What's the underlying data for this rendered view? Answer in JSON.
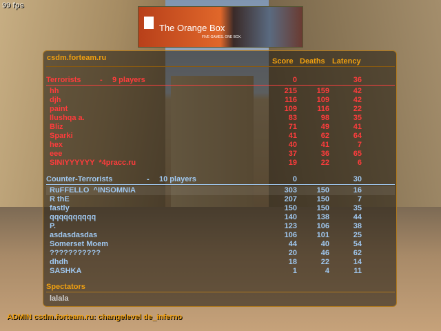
{
  "hud": {
    "fps": "99 fps",
    "admin_message": "ADMIN csdm.forteam.ru: changelevel de_inferno"
  },
  "banner": {
    "title": "The Orange Box",
    "subtitle": "FIVE GAMES. ONE BOX."
  },
  "scoreboard": {
    "server": "csdm.forteam.ru",
    "columns": [
      "Score",
      "Deaths",
      "Latency"
    ],
    "colors": {
      "accent": "#f0a010",
      "terrorists": "#ff3c3c",
      "ct": "#a0c8f0"
    },
    "teams": [
      {
        "name": "Terrorists",
        "sep": "-",
        "count": "9 players",
        "score": "0",
        "latency": "36",
        "players": [
          {
            "name": "hh",
            "score": "215",
            "deaths": "159",
            "latency": "42"
          },
          {
            "name": "djh",
            "score": "116",
            "deaths": "109",
            "latency": "42"
          },
          {
            "name": "paint",
            "score": "109",
            "deaths": "116",
            "latency": "22"
          },
          {
            "name": "Ilushqa a.",
            "score": "83",
            "deaths": "98",
            "latency": "35"
          },
          {
            "name": "Bliz",
            "score": "71",
            "deaths": "49",
            "latency": "41"
          },
          {
            "name": "Sparki",
            "score": "41",
            "deaths": "62",
            "latency": "64"
          },
          {
            "name": "hex",
            "score": "40",
            "deaths": "41",
            "latency": "7"
          },
          {
            "name": "eee",
            "score": "37",
            "deaths": "36",
            "latency": "65"
          },
          {
            "name": "SINIYYYYYY  *4pracc.ru",
            "score": "19",
            "deaths": "22",
            "latency": "6"
          }
        ]
      },
      {
        "name": "Counter-Terrorists",
        "sep": "-",
        "count": "10 players",
        "score": "0",
        "latency": "30",
        "players": [
          {
            "name": "RuFFELLO  ^INSOMNIA",
            "score": "303",
            "deaths": "150",
            "latency": "16"
          },
          {
            "name": "R thE",
            "score": "207",
            "deaths": "150",
            "latency": "7"
          },
          {
            "name": "fastly",
            "score": "150",
            "deaths": "150",
            "latency": "35"
          },
          {
            "name": "qqqqqqqqqq",
            "score": "140",
            "deaths": "138",
            "latency": "44"
          },
          {
            "name": "P.",
            "score": "123",
            "deaths": "106",
            "latency": "38"
          },
          {
            "name": "asdasdasdas",
            "score": "106",
            "deaths": "101",
            "latency": "25"
          },
          {
            "name": "Somerset Moem",
            "score": "44",
            "deaths": "40",
            "latency": "54"
          },
          {
            "name": "???????????",
            "score": "20",
            "deaths": "46",
            "latency": "62"
          },
          {
            "name": "dhdh",
            "score": "18",
            "deaths": "22",
            "latency": "14"
          },
          {
            "name": "SASHKA",
            "score": "1",
            "deaths": "4",
            "latency": "11"
          }
        ]
      }
    ],
    "spectators": {
      "label": "Spectators",
      "players": [
        "lalala"
      ]
    }
  }
}
